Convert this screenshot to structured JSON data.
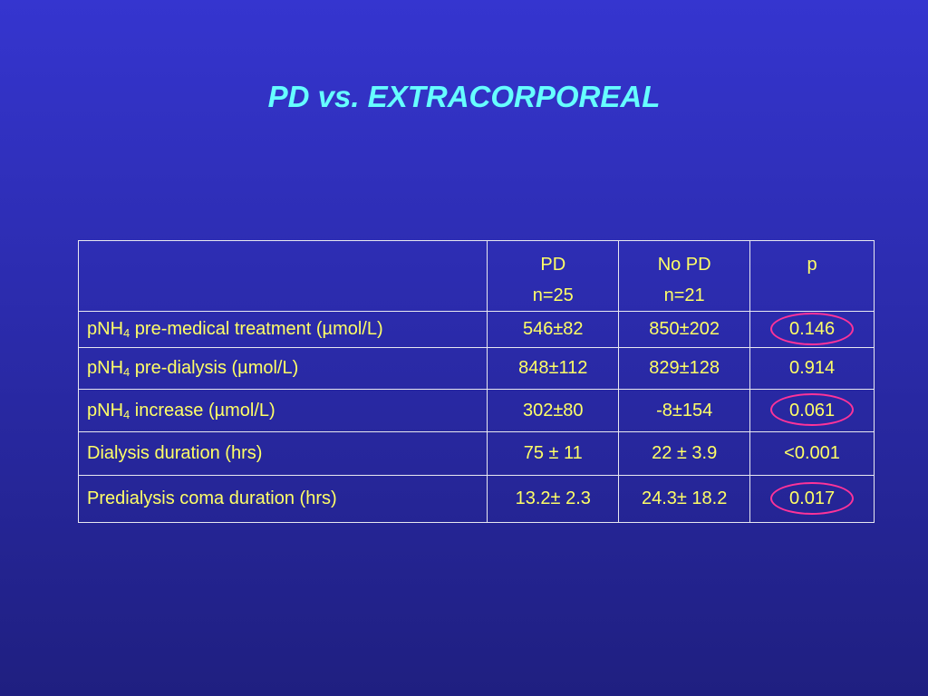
{
  "title": "PD vs. EXTRACORPOREAL",
  "table": {
    "header": [
      [
        "PD",
        "n=25"
      ],
      [
        "No PD",
        "n=21"
      ],
      [
        "p"
      ]
    ],
    "rows": [
      {
        "label": {
          "main": "pNH",
          "sub": "4",
          "rest": " pre-medical treatment (µmol/L)"
        },
        "cells": [
          "546±82",
          "850±202",
          "0.146"
        ],
        "circled": true
      },
      {
        "label": {
          "main": "pNH",
          "sub": "4",
          "rest": " pre-dialysis (µmol/L)"
        },
        "cells": [
          "848±112",
          "829±128",
          "0.914"
        ],
        "circled": false
      },
      {
        "label": {
          "main": "pNH",
          "sub": "4",
          "rest": " increase (µmol/L)"
        },
        "cells": [
          "302±80",
          "-8±154",
          "0.061"
        ],
        "circled": true
      },
      {
        "label": "Dialysis duration (hrs)",
        "cells": [
          "75 ± 11",
          "22 ± 3.9",
          "<0.001"
        ],
        "circled": false
      },
      {
        "label": "Predialysis coma duration (hrs)",
        "cells": [
          "13.2± 2.3",
          "24.3± 18.2",
          "0.017"
        ],
        "circled": true
      }
    ]
  }
}
